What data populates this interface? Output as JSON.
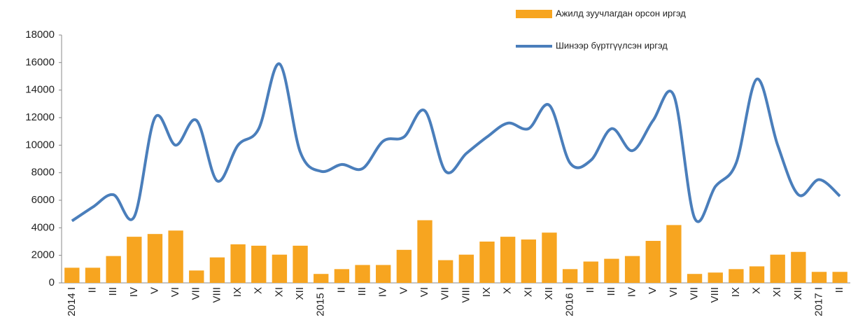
{
  "chart_data": {
    "type": "bar_line",
    "categories": [
      "2014 I",
      "II",
      "III",
      "IV",
      "V",
      "VI",
      "VII",
      "VIII",
      "IX",
      "X",
      "XI",
      "XII",
      "2015 I",
      "II",
      "III",
      "IV",
      "V",
      "VI",
      "VII",
      "VIII",
      "IX",
      "X",
      "XI",
      "XII",
      "2016 I",
      "II",
      "III",
      "IV",
      "V",
      "VI",
      "VII",
      "VIII",
      "IX",
      "X",
      "XI",
      "XII",
      "2017 I",
      "II"
    ],
    "series": [
      {
        "name": "Ажилд зуучлагдан орсон иргэд",
        "type": "bar",
        "color": "#f7a520",
        "values": [
          1100,
          1100,
          1950,
          3350,
          3550,
          3800,
          900,
          1850,
          2800,
          2700,
          2050,
          2700,
          650,
          1000,
          1300,
          1300,
          2400,
          4550,
          1650,
          2050,
          3000,
          3350,
          3150,
          3650,
          1000,
          1550,
          1750,
          1950,
          3050,
          4200,
          650,
          750,
          1000,
          1200,
          2050,
          2250,
          800,
          800
        ]
      },
      {
        "name": "Шинээр бүртгүүлсэн иргэд",
        "type": "line",
        "color": "#4a7ebb",
        "values": [
          4500,
          5500,
          6400,
          4800,
          12000,
          10000,
          11800,
          7400,
          10000,
          11200,
          15900,
          9500,
          8100,
          8600,
          8300,
          10300,
          10600,
          12500,
          8100,
          9400,
          10600,
          11600,
          11200,
          12900,
          8700,
          8900,
          11200,
          9600,
          11800,
          13600,
          4700,
          7000,
          8700,
          14800,
          10000,
          6400,
          7500,
          6300
        ]
      }
    ],
    "ylim": [
      0,
      18000
    ],
    "yticks": [
      0,
      2000,
      4000,
      6000,
      8000,
      10000,
      12000,
      14000,
      16000,
      18000
    ]
  }
}
